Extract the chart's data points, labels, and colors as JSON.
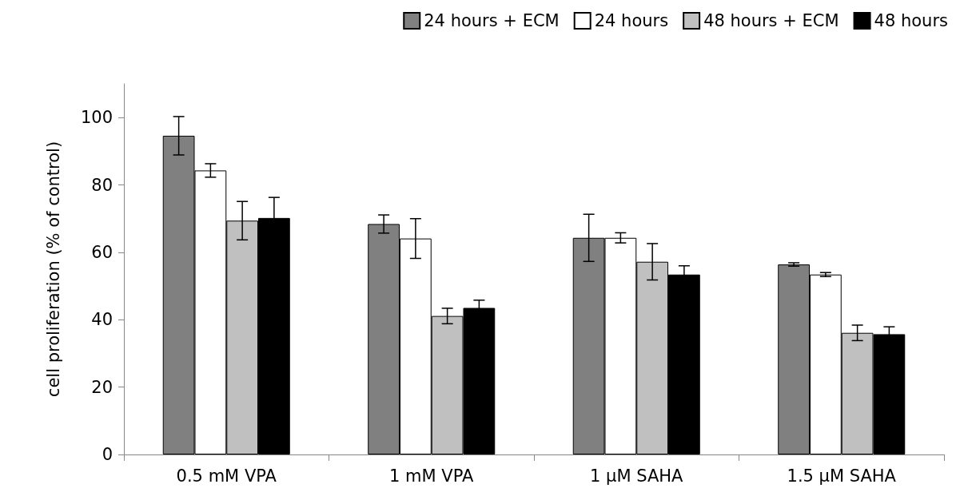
{
  "chart_data": {
    "type": "bar",
    "ylabel": "cell proliferation (% of control)",
    "categories": [
      "0.5 mM VPA",
      "1 mM VPA",
      "1 µM SAHA",
      "1.5 µM SAHA"
    ],
    "series": [
      {
        "name": "24 hours + ECM",
        "color": "#808080",
        "values": [
          94.6,
          68.4,
          64.3,
          56.4
        ],
        "errors": [
          5.7,
          2.7,
          7,
          0.5
        ]
      },
      {
        "name": "24 hours",
        "color": "#ffffff",
        "values": [
          84.3,
          64.1,
          64.3,
          53.4
        ],
        "errors": [
          2,
          5.9,
          1.5,
          0.6
        ]
      },
      {
        "name": "48 hours + ECM",
        "color": "#c0c0c0",
        "values": [
          69.4,
          41.1,
          57.2,
          36.1
        ],
        "errors": [
          5.7,
          2.3,
          5.4,
          2.3
        ]
      },
      {
        "name": "48 hours",
        "color": "#000000",
        "values": [
          70.2,
          43.5,
          53.4,
          35.7
        ],
        "errors": [
          6.1,
          2.3,
          2.6,
          2.2
        ]
      }
    ],
    "ylim": [
      0,
      110
    ],
    "yticks": [
      0,
      20,
      40,
      60,
      80,
      100
    ],
    "grid": false,
    "legend": "top right"
  }
}
